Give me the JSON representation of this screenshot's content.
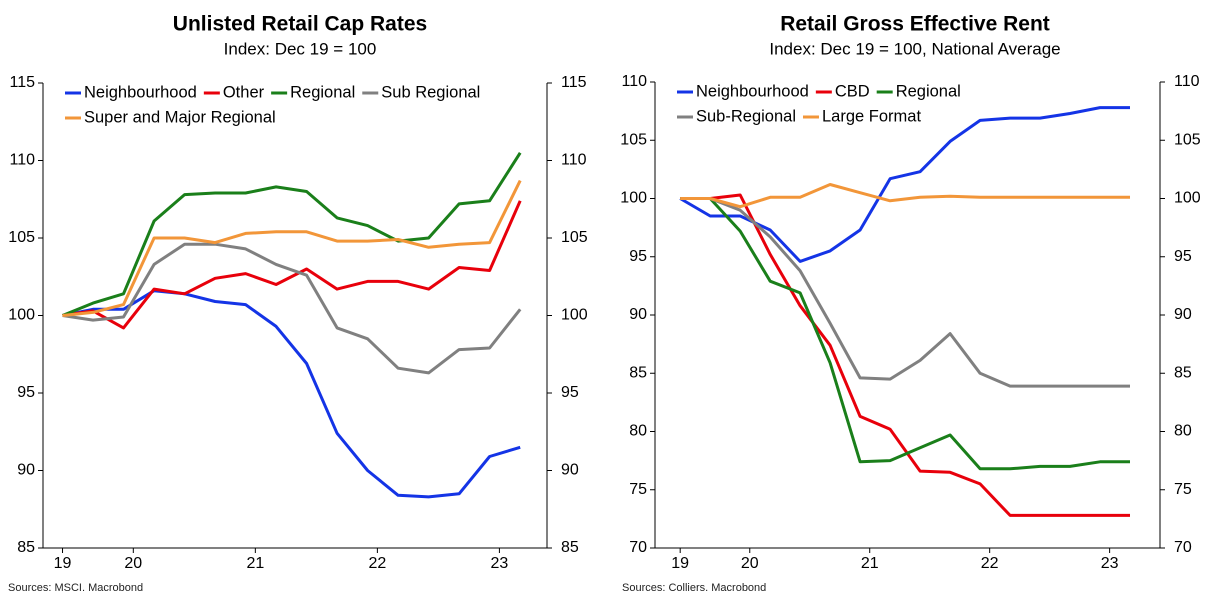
{
  "chart_data": [
    {
      "type": "line",
      "title": "Unlisted Retail Cap Rates",
      "subtitle": "Index: Dec 19 = 100",
      "source": "Sources: MSCI. Macrobond",
      "x": [
        2019.92,
        2020.17,
        2020.42,
        2020.67,
        2020.92,
        2021.17,
        2021.42,
        2021.67,
        2021.92,
        2022.17,
        2022.42,
        2022.67,
        2022.92,
        2023.17,
        2023.42,
        2023.67
      ],
      "xlim": [
        2019.76,
        2023.89
      ],
      "xticks": [
        {
          "value": 2019.92,
          "label": "19"
        },
        {
          "value": 2020.5,
          "label": "20"
        },
        {
          "value": 2021.5,
          "label": "21"
        },
        {
          "value": 2022.5,
          "label": "22"
        },
        {
          "value": 2023.5,
          "label": "23"
        }
      ],
      "ylim": [
        85,
        115
      ],
      "yticks": [
        85,
        90,
        95,
        100,
        105,
        110,
        115
      ],
      "legend": "top-left",
      "series": [
        {
          "name": "Neighbourhood",
          "color": "#1434e6",
          "values": [
            100,
            100.4,
            100.4,
            101.6,
            101.4,
            100.9,
            100.7,
            99.3,
            96.9,
            92.4,
            90.0,
            88.4,
            88.3,
            88.5,
            90.9,
            91.5
          ]
        },
        {
          "name": "Other",
          "color": "#e8000b",
          "values": [
            100,
            100.3,
            99.2,
            101.7,
            101.4,
            102.4,
            102.7,
            102.0,
            103.0,
            101.7,
            102.2,
            102.2,
            101.7,
            103.1,
            102.9,
            107.4
          ]
        },
        {
          "name": "Regional",
          "color": "#1a7f1a",
          "values": [
            100,
            100.8,
            101.4,
            106.1,
            107.8,
            107.9,
            107.9,
            108.3,
            108.0,
            106.3,
            105.8,
            104.8,
            105.0,
            107.2,
            107.4,
            110.5
          ]
        },
        {
          "name": "Sub Regional",
          "color": "#808080",
          "values": [
            100,
            99.7,
            99.9,
            103.3,
            104.6,
            104.6,
            104.3,
            103.3,
            102.6,
            99.2,
            98.5,
            96.6,
            96.3,
            97.8,
            97.9,
            100.4
          ]
        },
        {
          "name": "Super and Major Regional",
          "color": "#f29639",
          "values": [
            100,
            100.2,
            100.7,
            105.0,
            105.0,
            104.7,
            105.3,
            105.4,
            105.4,
            104.8,
            104.8,
            104.9,
            104.4,
            104.6,
            104.7,
            108.7
          ]
        }
      ]
    },
    {
      "type": "line",
      "title": "Retail Gross Effective Rent",
      "subtitle": "Index: Dec 19 = 100, National Average",
      "source": "Sources: Colliers. Macrobond",
      "x": [
        2019.92,
        2020.17,
        2020.42,
        2020.67,
        2020.92,
        2021.17,
        2021.42,
        2021.67,
        2021.92,
        2022.17,
        2022.42,
        2022.67,
        2022.92,
        2023.17,
        2023.42,
        2023.67
      ],
      "xlim": [
        2019.71,
        2023.92
      ],
      "xticks": [
        {
          "value": 2019.92,
          "label": "19"
        },
        {
          "value": 2020.5,
          "label": "20"
        },
        {
          "value": 2021.5,
          "label": "21"
        },
        {
          "value": 2022.5,
          "label": "22"
        },
        {
          "value": 2023.5,
          "label": "23"
        }
      ],
      "ylim": [
        70,
        110
      ],
      "yticks": [
        70,
        75,
        80,
        85,
        90,
        95,
        100,
        105,
        110
      ],
      "legend": "top-left",
      "series": [
        {
          "name": "Neighbourhood",
          "color": "#1434e6",
          "values": [
            100,
            98.5,
            98.5,
            97.3,
            94.6,
            95.5,
            97.3,
            101.7,
            102.3,
            104.9,
            106.7,
            106.9,
            106.9,
            107.3,
            107.8,
            107.8
          ]
        },
        {
          "name": "CBD",
          "color": "#e8000b",
          "values": [
            100,
            100,
            100.3,
            95.2,
            90.8,
            87.4,
            81.3,
            80.2,
            76.6,
            76.5,
            75.5,
            72.8,
            72.8,
            72.8,
            72.8,
            72.8
          ]
        },
        {
          "name": "Regional",
          "color": "#1a7f1a",
          "values": [
            100,
            100,
            97.2,
            92.9,
            91.9,
            85.9,
            77.4,
            77.5,
            78.6,
            79.7,
            76.8,
            76.8,
            77.0,
            77.0,
            77.4,
            77.4
          ]
        },
        {
          "name": "Sub-Regional",
          "color": "#808080",
          "values": [
            100,
            100,
            99.0,
            96.7,
            93.8,
            89.3,
            84.6,
            84.5,
            86.1,
            88.4,
            85.0,
            83.9,
            83.9,
            83.9,
            83.9,
            83.9
          ]
        },
        {
          "name": "Large Format",
          "color": "#f29639",
          "values": [
            100,
            100,
            99.3,
            100.1,
            100.1,
            101.2,
            100.5,
            99.8,
            100.1,
            100.2,
            100.1,
            100.1,
            100.1,
            100.1,
            100.1,
            100.1
          ]
        }
      ]
    }
  ]
}
